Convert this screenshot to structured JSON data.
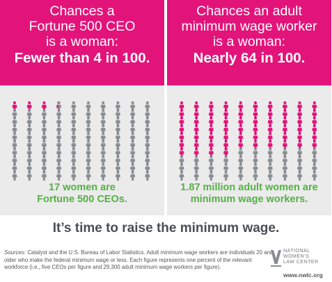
{
  "left_panel": {
    "question_lines": [
      "Chances a",
      "Fortune 500 CEO",
      "is a woman:"
    ],
    "answer": "Fewer than 4 in 100.",
    "caption_lines": [
      "17 women are",
      "Fortune 500 CEOs."
    ],
    "women_count": 3.4,
    "total_count": 100
  },
  "right_panel": {
    "question_lines": [
      "Chances an adult",
      "minimum wage worker",
      "is a woman:"
    ],
    "answer": "Nearly 64 in 100.",
    "caption_lines": [
      "1.87 million adult women are",
      "minimum wage workers."
    ],
    "women_count": 63.8,
    "total_count": 100
  },
  "headline": "It’s time to raise the minimum wage.",
  "sources": {
    "label": "Sources:",
    "line1": " Catalyst and the U.S. Bureau of Labor Statistics.  Adult minimum wage workers are individuals 20 and",
    "line2": "older who make the federal minimum wage or less.  Each figure represents one percent of the relevant",
    "line3": "workforce (i.e., five CEOs per figure and 29,300 adult minimum wage workers per figure)."
  },
  "logo": {
    "line1": "NATIONAL",
    "line2": "WOMEN’S",
    "line3": "LAW CENTER",
    "url": "www.nwlc.org"
  },
  "colors": {
    "pink": "#e2147a",
    "gray_figure": "#8a8d91",
    "green": "#55b044",
    "panel_bg": "#ebebeb"
  },
  "icons": {
    "figure": "person-icon",
    "logo": "nwlc-logo-icon"
  }
}
